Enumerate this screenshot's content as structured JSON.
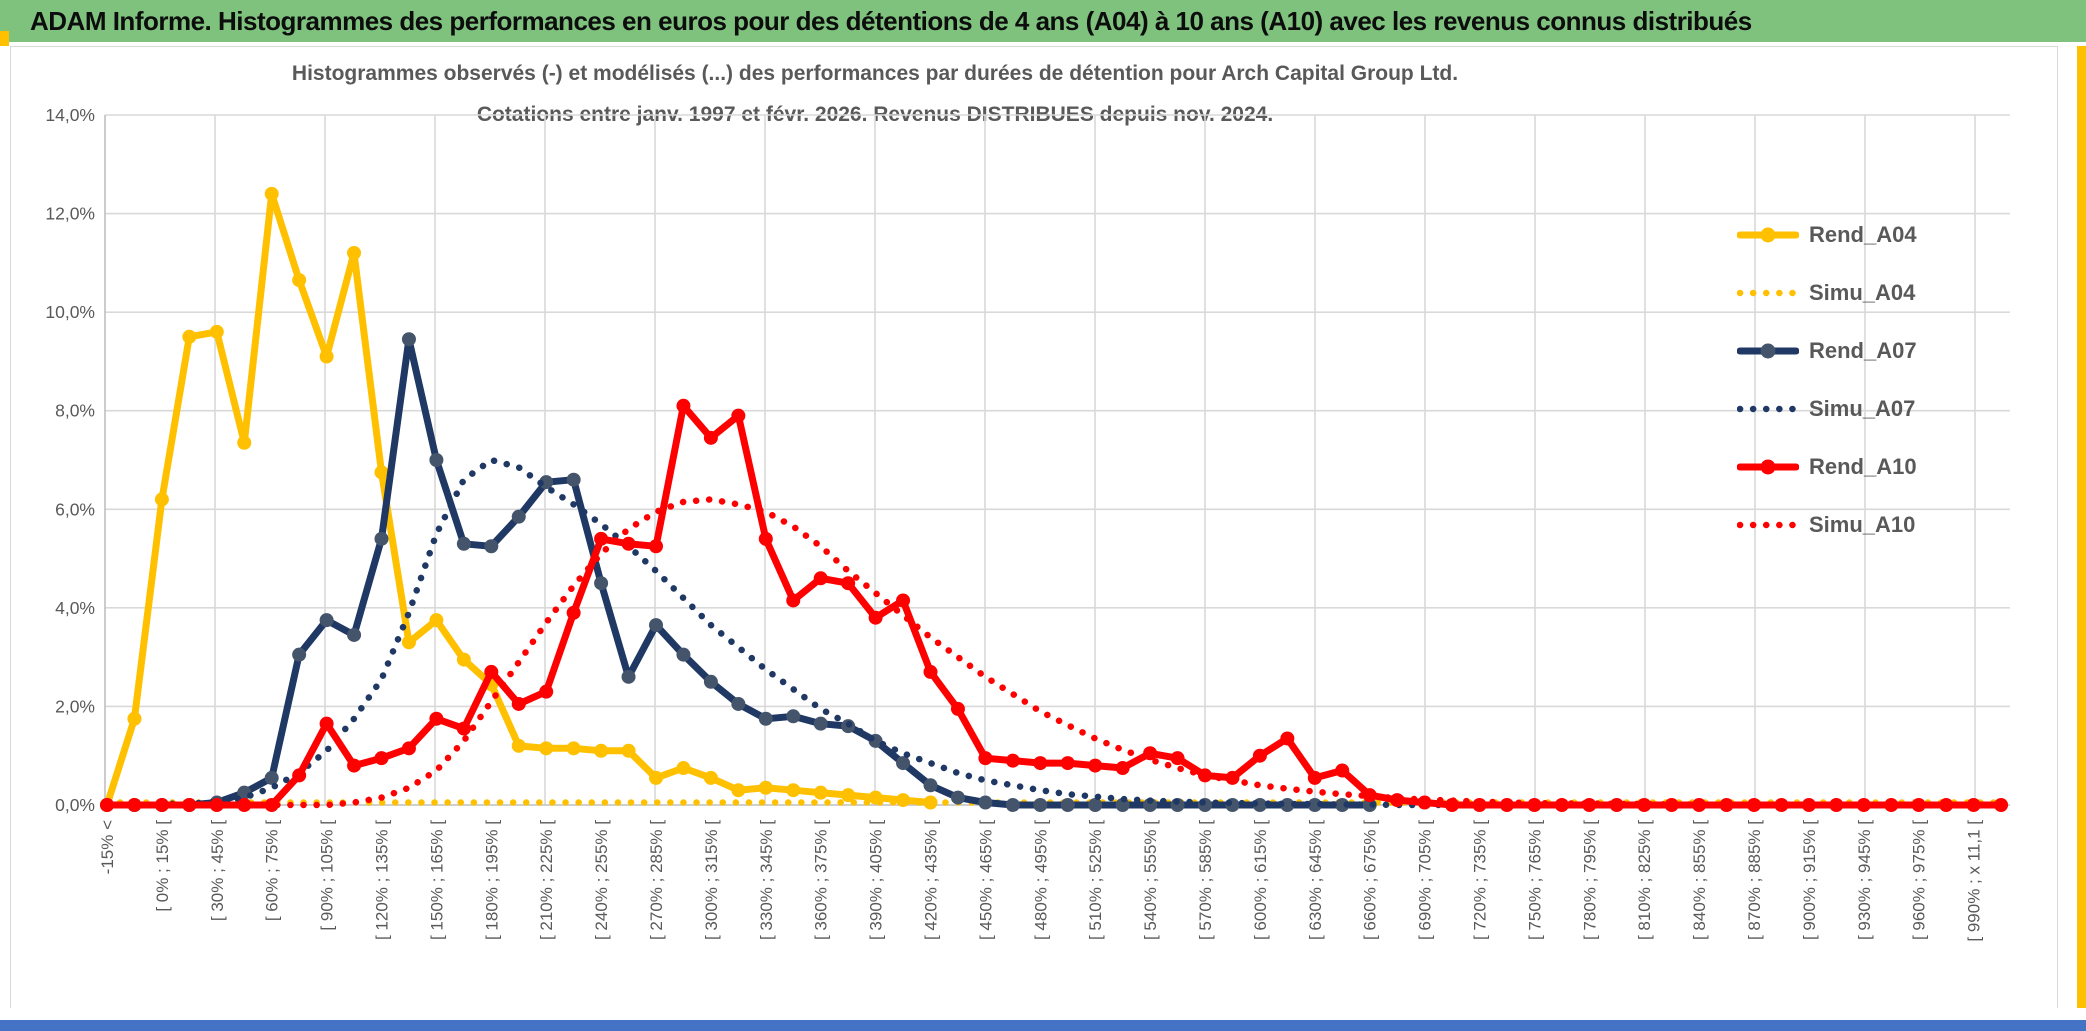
{
  "header": {
    "title": "ADAM Informe. Histogrammes des performances en euros pour des détentions de 4 ans (A04) à 10 ans (A10) avec les revenus connus distribués"
  },
  "chart": {
    "title_line1": "Histogrammes observés (-) et modélisés (...) des performances par durées de détention pour Arch Capital Group Ltd.",
    "title_line2": "Cotations entre janv. 1997 et févr. 2026. Revenus DISTRIBUES depuis nov. 2024."
  },
  "colors": {
    "header_bg": "#7EC27E",
    "accent_yellow": "#FFC000",
    "accent_blue": "#4472C4",
    "grid": "#D9D9D9",
    "axis": "#BFBFBF",
    "text_grey": "#595959",
    "series_yellow": "#FFC000",
    "series_navy": "#1F3864",
    "navy_marker_fill": "#44546A",
    "series_red": "#FF0000"
  },
  "chart_data": {
    "type": "line",
    "title": "Histogrammes observés (-) et modélisés (...) des performances par durées de détention pour Arch Capital Group Ltd. Cotations entre janv. 1997 et févr. 2026. Revenus DISTRIBUES depuis nov. 2024.",
    "xlabel": "",
    "ylabel": "",
    "ylim": [
      0,
      14
    ],
    "y_unit": "percent",
    "grid": "on",
    "legend_position": "right-inside",
    "n_bins": 70,
    "x_tick_every_n_bins": 2,
    "x_tick_labels": [
      "-15% <",
      "[ 0% ; 15% [",
      "[ 30% ; 45% [",
      "[ 60% ; 75% [",
      "[ 90% ; 105% [",
      "[ 120% ; 135% [",
      "[ 150% ; 165% [",
      "[ 180% ; 195% [",
      "[ 210% ; 225% [",
      "[ 240% ; 255% [",
      "[ 270% ; 285% [",
      "[ 300% ; 315% [",
      "[ 330% ; 345% [",
      "[ 360% ; 375% [",
      "[ 390% ; 405% [",
      "[ 420% ; 435% [",
      "[ 450% ; 465% [",
      "[ 480% ; 495% [",
      "[ 510% ; 525% [",
      "[ 540% ; 555% [",
      "[ 570% ; 585% [",
      "[ 600% ; 615% [",
      "[ 630% ; 645% [",
      "[ 660% ; 675% [",
      "[ 690% ; 705% [",
      "[ 720% ; 735% [",
      "[ 750% ; 765% [",
      "[ 780% ; 795% [",
      "[ 810% ; 825% [",
      "[ 840% ; 855% [",
      "[ 870% ; 885% [",
      "[ 900% ; 915% [",
      "[ 930% ; 945% [",
      "[ 960% ; 975% [",
      "[ 990% ; x 11,1 ["
    ],
    "y_tick_labels": [
      "0,0%",
      "2,0%",
      "4,0%",
      "6,0%",
      "8,0%",
      "10,0%",
      "12,0%",
      "14,0%"
    ],
    "series": [
      {
        "name": "Rend_A04",
        "color": "#FFC000",
        "marker_color": "#FFC000",
        "style": "solid",
        "marker": true,
        "values": [
          0,
          1.75,
          6.2,
          9.5,
          9.6,
          7.35,
          12.4,
          10.65,
          9.1,
          11.2,
          6.75,
          3.3,
          3.75,
          2.95,
          2.45,
          1.2,
          1.15,
          1.15,
          1.1,
          1.1,
          0.55,
          0.75,
          0.55,
          0.3,
          0.35,
          0.3,
          0.25,
          0.2,
          0.15,
          0.1,
          0.05
        ]
      },
      {
        "name": "Simu_A04",
        "color": "#FFC000",
        "style": "dotted",
        "marker": false,
        "values": [
          0.05,
          0.05,
          0.05,
          0.05,
          0.05,
          0.05,
          0.05,
          0.05,
          0.05,
          0.05,
          0.05,
          0.05,
          0.05,
          0.05,
          0.05,
          0.05,
          0.05,
          0.05,
          0.05,
          0.05,
          0.05,
          0.05,
          0.05,
          0.05,
          0.05,
          0.05,
          0.05,
          0.05,
          0.05,
          0.05,
          0.05,
          0.05,
          0.05,
          0.05,
          0.05,
          0.05,
          0.05,
          0.05,
          0.05,
          0.05,
          0.05,
          0.05,
          0.05,
          0.05,
          0.05,
          0.05,
          0.05,
          0.05,
          0.05,
          0.05,
          0.05,
          0.05,
          0.05,
          0.05,
          0.05,
          0.05,
          0.05,
          0.05,
          0.05,
          0.05,
          0.05,
          0.05,
          0.05,
          0.05,
          0.05,
          0.05,
          0.05,
          0.05,
          0.05,
          0.05
        ]
      },
      {
        "name": "Rend_A07",
        "color": "#1F3864",
        "marker_color": "#44546A",
        "style": "solid",
        "marker": true,
        "values": [
          0,
          0,
          0,
          0,
          0.05,
          0.25,
          0.55,
          3.05,
          3.75,
          3.45,
          5.4,
          9.45,
          7.0,
          5.3,
          5.25,
          5.85,
          6.55,
          6.6,
          4.5,
          2.6,
          3.65,
          3.05,
          2.5,
          2.05,
          1.75,
          1.8,
          1.65,
          1.6,
          1.3,
          0.85,
          0.4,
          0.15,
          0.05,
          0,
          0,
          0,
          0,
          0,
          0,
          0,
          0,
          0,
          0,
          0,
          0,
          0,
          0
        ]
      },
      {
        "name": "Simu_A07",
        "color": "#1F3864",
        "style": "dotted",
        "marker": false,
        "values": [
          0,
          0,
          0.02,
          0.03,
          0.06,
          0.15,
          0.35,
          0.65,
          1.1,
          1.75,
          2.55,
          3.9,
          5.5,
          6.6,
          7.0,
          6.85,
          6.45,
          6.1,
          5.7,
          5.25,
          4.75,
          4.2,
          3.65,
          3.2,
          2.75,
          2.35,
          1.95,
          1.65,
          1.3,
          1.05,
          0.85,
          0.65,
          0.5,
          0.4,
          0.3,
          0.22,
          0.17,
          0.12,
          0.09,
          0.07,
          0.05,
          0.04,
          0.03,
          0.02,
          0.02,
          0.01,
          0.01,
          0,
          0,
          0,
          0,
          0,
          0,
          0,
          0,
          0,
          0,
          0,
          0,
          0,
          0,
          0,
          0,
          0,
          0,
          0,
          0,
          0,
          0,
          0
        ]
      },
      {
        "name": "Rend_A10",
        "color": "#FF0000",
        "marker_color": "#FF0000",
        "style": "solid",
        "marker": true,
        "values": [
          0,
          0,
          0,
          0,
          0,
          0,
          0,
          0.6,
          1.65,
          0.8,
          0.95,
          1.15,
          1.75,
          1.55,
          2.7,
          2.05,
          2.3,
          3.9,
          5.4,
          5.3,
          5.25,
          8.1,
          7.45,
          7.9,
          5.4,
          4.15,
          4.6,
          4.5,
          3.8,
          4.15,
          2.7,
          1.95,
          0.95,
          0.9,
          0.85,
          0.85,
          0.8,
          0.75,
          1.05,
          0.95,
          0.6,
          0.55,
          1.0,
          1.35,
          0.55,
          0.7,
          0.2,
          0.1,
          0.05,
          0,
          0,
          0,
          0,
          0,
          0,
          0,
          0,
          0,
          0,
          0,
          0,
          0,
          0,
          0,
          0,
          0,
          0,
          0,
          0,
          0
        ]
      },
      {
        "name": "Simu_A10",
        "color": "#FF0000",
        "style": "dotted",
        "marker": false,
        "values": [
          0,
          0,
          0,
          0,
          0,
          0,
          0,
          0,
          0,
          0.05,
          0.15,
          0.35,
          0.7,
          1.3,
          2.1,
          2.9,
          3.7,
          4.45,
          5.1,
          5.6,
          5.95,
          6.15,
          6.2,
          6.1,
          5.95,
          5.65,
          5.25,
          4.75,
          4.3,
          3.85,
          3.4,
          3.0,
          2.6,
          2.25,
          1.9,
          1.62,
          1.35,
          1.12,
          0.92,
          0.75,
          0.6,
          0.5,
          0.4,
          0.33,
          0.27,
          0.22,
          0.18,
          0.14,
          0.11,
          0.09,
          0.07,
          0.05,
          0.04,
          0.03,
          0.03,
          0.02,
          0.02,
          0.01,
          0.01,
          0,
          0,
          0,
          0,
          0,
          0,
          0,
          0,
          0,
          0,
          0
        ]
      }
    ]
  }
}
